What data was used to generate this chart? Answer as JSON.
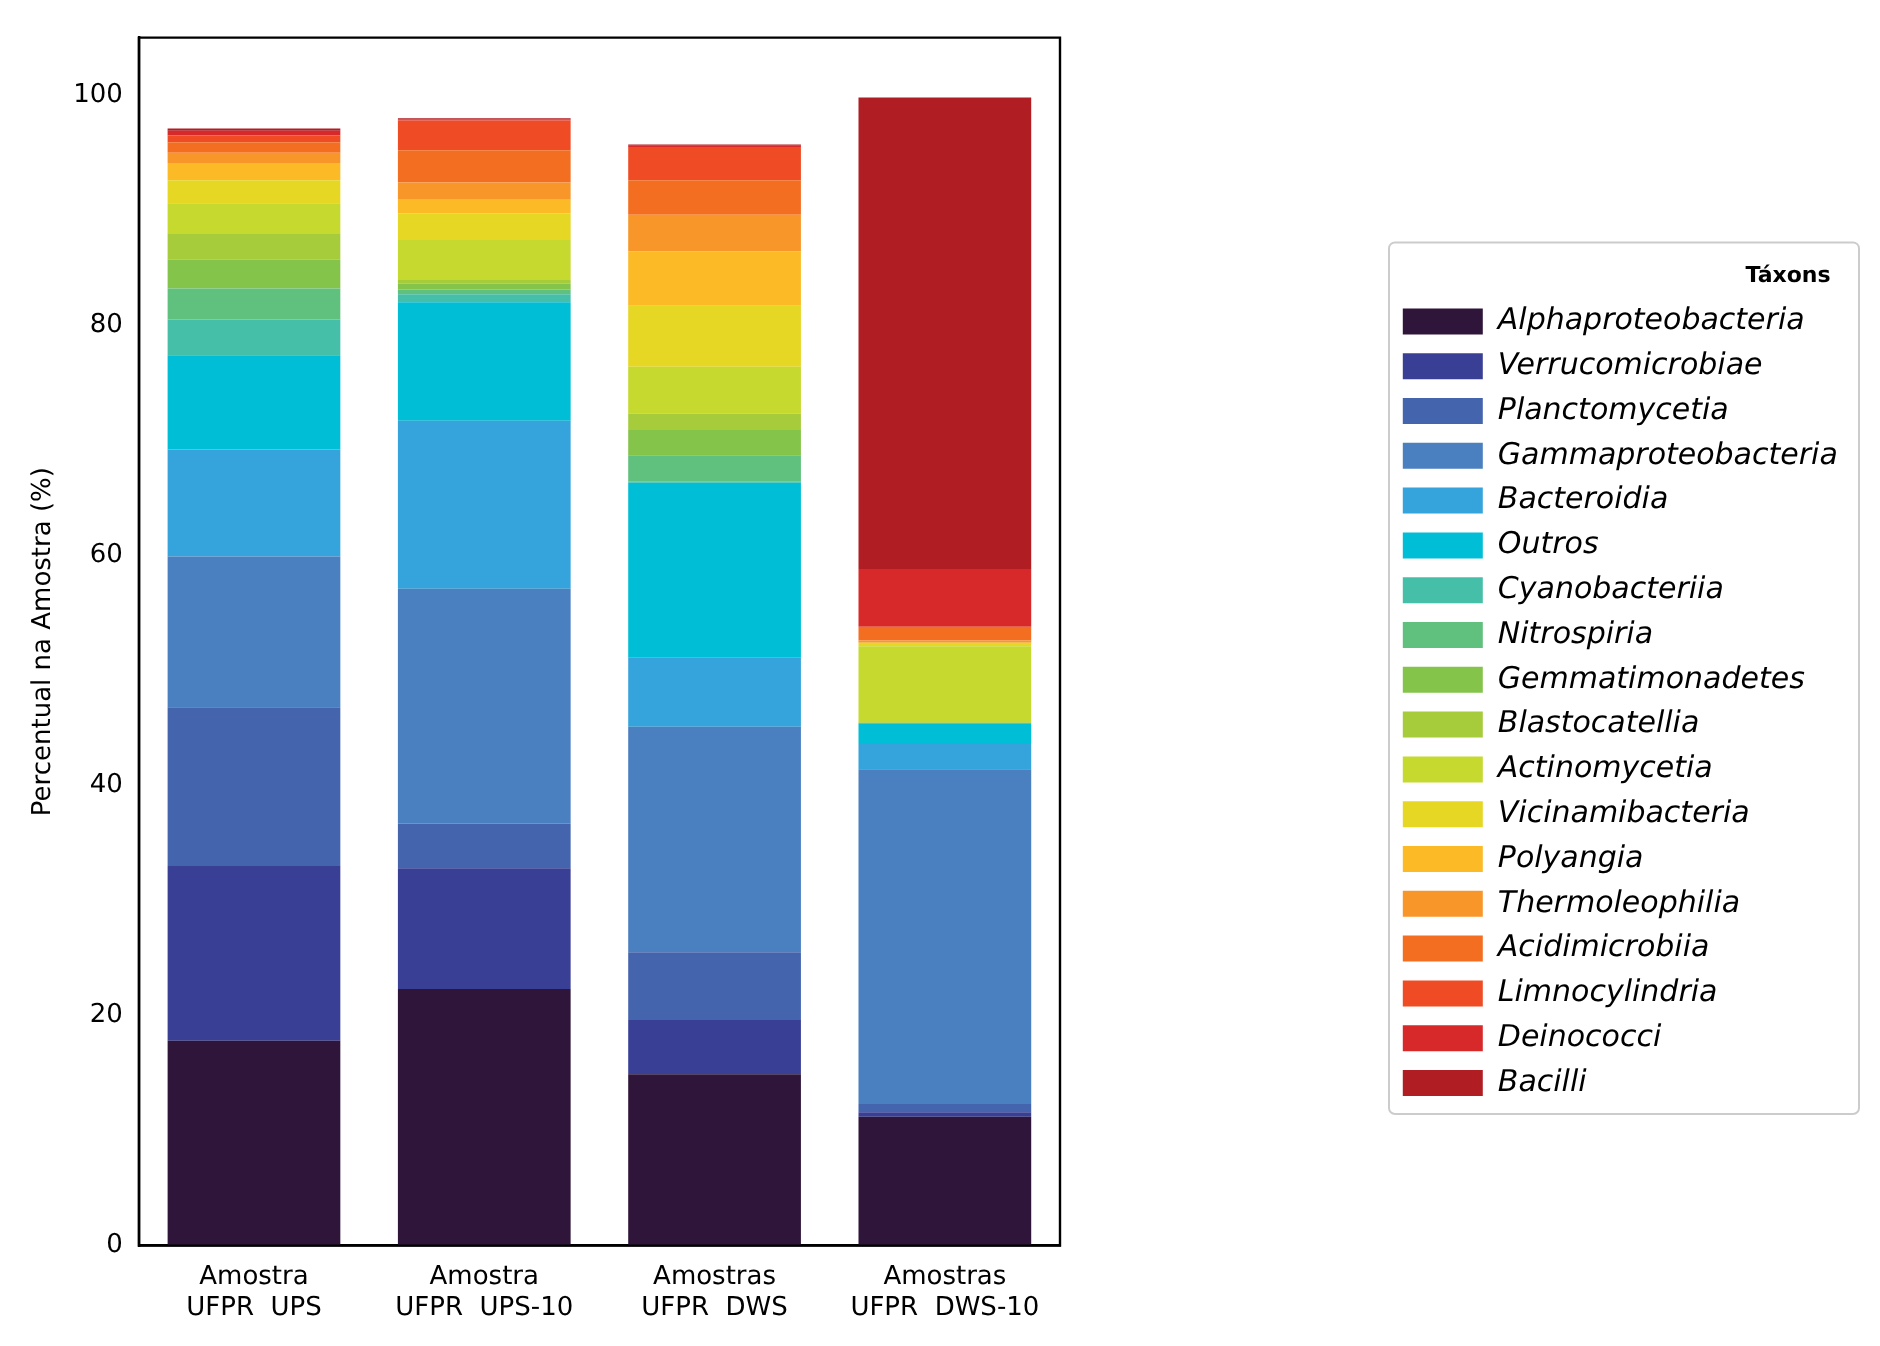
{
  "chart_data": {
    "type": "bar",
    "stacked": true,
    "ylabel": "Percentual na Amostra (%)",
    "legend_title": "Táxons",
    "legend": "right",
    "categories": [
      "Amostra\nUFPR  UPS",
      "Amostra\nUFPR  UPS-10",
      "Amostras\nUFPR  DWS",
      "Amostras\nUFPR  DWS-10"
    ],
    "ylim": [
      0,
      105
    ],
    "yticks": [
      0,
      20,
      40,
      60,
      80,
      100
    ],
    "grid": false,
    "series": [
      {
        "name": "Alphaproteobacteria",
        "color": "#2f1539",
        "values": [
          17.8,
          22.3,
          14.9,
          11.2
        ]
      },
      {
        "name": "Verrucomicrobiae",
        "color": "#3a3f96",
        "values": [
          15.2,
          10.5,
          4.7,
          0.4
        ]
      },
      {
        "name": "Planctomycetia",
        "color": "#4464ae",
        "values": [
          13.8,
          3.9,
          5.9,
          0.7
        ]
      },
      {
        "name": "Gammaproteobacteria",
        "color": "#4a7fc0",
        "values": [
          13.1,
          20.4,
          19.6,
          29.1
        ]
      },
      {
        "name": "Bacteroidia",
        "color": "#35a4dc",
        "values": [
          9.3,
          14.6,
          6.0,
          2.2
        ]
      },
      {
        "name": "Outros",
        "color": "#00bed6",
        "values": [
          8.2,
          10.3,
          15.2,
          1.8
        ]
      },
      {
        "name": "Cyanobacteriia",
        "color": "#45bfa8",
        "values": [
          3.1,
          0.7,
          0.1,
          0
        ]
      },
      {
        "name": "Nitrospiria",
        "color": "#60c07e",
        "values": [
          2.7,
          0.4,
          2.3,
          0
        ]
      },
      {
        "name": "Gemmatimonadetes",
        "color": "#84c44a",
        "values": [
          2.5,
          0.5,
          2.2,
          0
        ]
      },
      {
        "name": "Blastocatellia",
        "color": "#a6cc3c",
        "values": [
          2.3,
          0.4,
          1.4,
          0.1
        ]
      },
      {
        "name": "Actinomycetia",
        "color": "#c5d92e",
        "values": [
          2.6,
          3.4,
          4.1,
          6.6
        ]
      },
      {
        "name": "Vicinamibacteria",
        "color": "#e6d724",
        "values": [
          2.0,
          2.3,
          5.3,
          0.3
        ]
      },
      {
        "name": "Polyangia",
        "color": "#fcba27",
        "values": [
          1.5,
          1.2,
          4.7,
          0
        ]
      },
      {
        "name": "Thermoleophilia",
        "color": "#f8962a",
        "values": [
          0.9,
          1.5,
          3.2,
          0.2
        ]
      },
      {
        "name": "Acidimicrobiia",
        "color": "#f46e22",
        "values": [
          0.9,
          2.8,
          3.0,
          1.2
        ]
      },
      {
        "name": "Limnocylindria",
        "color": "#ef4b24",
        "values": [
          0.6,
          2.6,
          2.9,
          0
        ]
      },
      {
        "name": "Deinococci",
        "color": "#d7292a",
        "values": [
          0.4,
          0.1,
          0.1,
          5.0
        ]
      },
      {
        "name": "Bacilli",
        "color": "#b01e24",
        "values": [
          0.2,
          0.1,
          0.1,
          41.0
        ]
      }
    ]
  }
}
